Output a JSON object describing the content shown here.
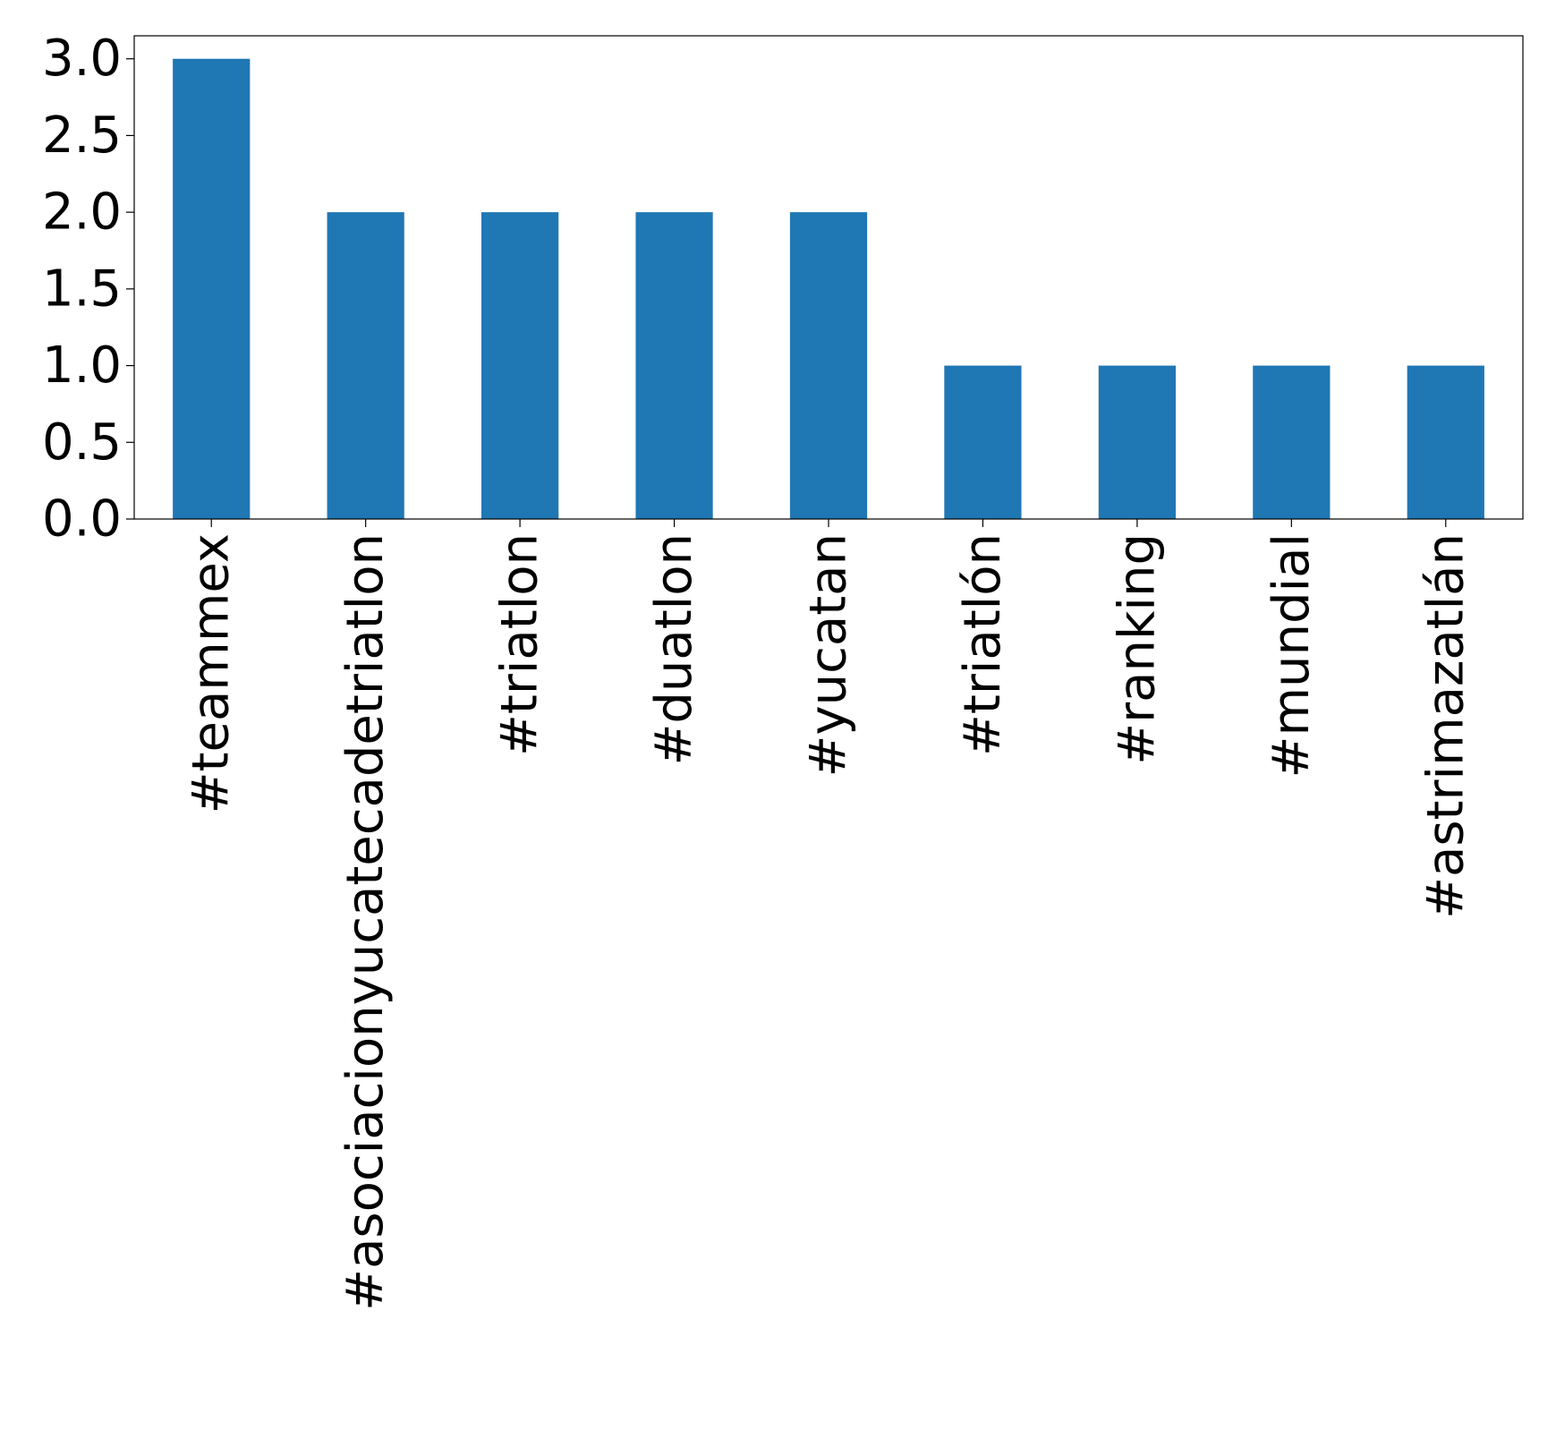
{
  "chart_data": {
    "type": "bar",
    "title": "",
    "xlabel": "",
    "ylabel": "",
    "categories": [
      "#teammex",
      "#asociacionyucatecadetriatlon",
      "#triatlon",
      "#duatlon",
      "#yucatan",
      "#triatlón",
      "#ranking",
      "#mundial",
      "#astrimazatlán"
    ],
    "values": [
      3,
      2,
      2,
      2,
      2,
      1,
      1,
      1,
      1
    ],
    "ylim": [
      0,
      3.15
    ],
    "yticks": [
      "0.0",
      "0.5",
      "1.0",
      "1.5",
      "2.0",
      "2.5",
      "3.0"
    ],
    "xtick_rotation": "vertical",
    "bar_color": "#1f77b4",
    "grid": false,
    "legend": "none"
  }
}
